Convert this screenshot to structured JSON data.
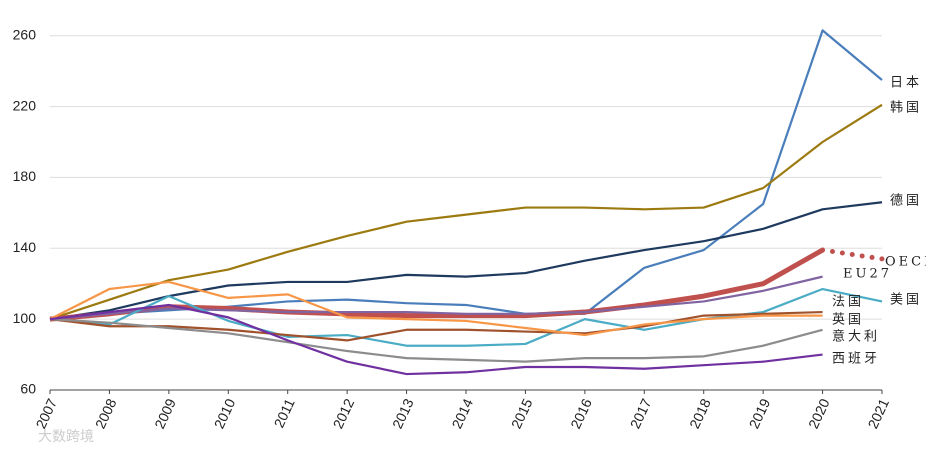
{
  "chart_data": {
    "type": "line",
    "categories": [
      "2007",
      "2008",
      "2009",
      "2010",
      "2011",
      "2012",
      "2013",
      "2014",
      "2015",
      "2016",
      "2017",
      "2018",
      "2019",
      "2020",
      "2021"
    ],
    "ylim": [
      60,
      270
    ],
    "yticks": [
      60,
      100,
      140,
      180,
      220,
      260
    ],
    "grid": true,
    "watermark": "大数跨境",
    "series": [
      {
        "name": "日本",
        "color": "#4a7ebb",
        "values": [
          100,
          103,
          105,
          107,
          110,
          111,
          109,
          108,
          103,
          103,
          129,
          139,
          165,
          263,
          235
        ]
      },
      {
        "name": "韩国",
        "color": "#9c7a10",
        "values": [
          100,
          111,
          122,
          128,
          138,
          147,
          155,
          159,
          163,
          163,
          162,
          163,
          174,
          200,
          221
        ]
      },
      {
        "name": "德国",
        "color": "#1f3a5f",
        "values": [
          100,
          105,
          113,
          119,
          121,
          121,
          125,
          124,
          126,
          133,
          139,
          144,
          151,
          162,
          166
        ]
      },
      {
        "name": "OECD",
        "color": "#c0504d",
        "width": 5,
        "dotted_from": 13,
        "values": [
          100,
          103,
          107,
          106,
          104,
          103,
          102,
          102,
          102,
          104,
          108,
          113,
          120,
          139,
          134
        ]
      },
      {
        "name": "EU27",
        "color": "#8064a2",
        "values": [
          100,
          103,
          106,
          105,
          104,
          104,
          104,
          103,
          103,
          104,
          107,
          110,
          116,
          124,
          null
        ]
      },
      {
        "name": "美国",
        "color": "#4bacc6",
        "values": [
          100,
          97,
          113,
          99,
          90,
          91,
          85,
          85,
          86,
          100,
          94,
          100,
          104,
          117,
          110
        ]
      },
      {
        "name": "法国",
        "color": "#a0522d",
        "values": [
          100,
          96,
          96,
          94,
          91,
          88,
          94,
          94,
          93,
          92,
          96,
          102,
          103,
          104,
          null
        ]
      },
      {
        "name": "英国",
        "color": "#f79646",
        "values": [
          100,
          117,
          121,
          112,
          114,
          101,
          100,
          99,
          95,
          91,
          97,
          100,
          102,
          102,
          null
        ]
      },
      {
        "name": "意大利",
        "color": "#8c8c8c",
        "values": [
          100,
          98,
          95,
          92,
          87,
          82,
          78,
          77,
          76,
          78,
          78,
          79,
          85,
          94,
          null
        ]
      },
      {
        "name": "西班牙",
        "color": "#7030a0",
        "values": [
          100,
          104,
          108,
          101,
          88,
          76,
          69,
          70,
          73,
          73,
          72,
          74,
          76,
          80,
          null
        ]
      }
    ]
  }
}
